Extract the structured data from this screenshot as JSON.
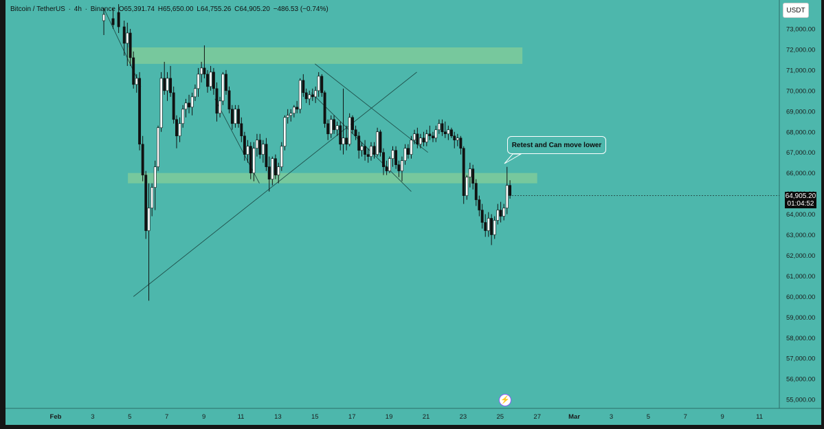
{
  "legend": {
    "symbol": "Bitcoin / TetherUS",
    "interval": "4h",
    "exchange": "Binance",
    "open": "O65,391.74",
    "high": "H65,650.00",
    "low": "L64,755.26",
    "close": "C64,905.20",
    "change": "−486.53 (−0.74%)"
  },
  "currency_button": "USDT",
  "annotation": "Retest and Can move lower",
  "last_price": {
    "value": "64,905.20",
    "countdown": "01:04:52"
  },
  "icons": {
    "bolt": "lightning-bolt-icon"
  },
  "colors": {
    "background": "#4db7ac",
    "zone": "#7fcb9a",
    "candle_up": "#ffffff",
    "candle_down": "#111111"
  },
  "chart_data": {
    "type": "candlestick",
    "y_axis": {
      "min": 55000,
      "max": 73000,
      "tick_labels": [
        "73,000.00",
        "72,000.00",
        "71,000.00",
        "70,000.00",
        "69,000.00",
        "68,000.00",
        "67,000.00",
        "66,000.00",
        "65,000.00",
        "64,000.00",
        "63,000.00",
        "62,000.00",
        "61,000.00",
        "60,000.00",
        "59,000.00",
        "58,000.00",
        "57,000.00",
        "56,000.00",
        "55,000.00"
      ],
      "tick_values": [
        73000,
        72000,
        71000,
        70000,
        69000,
        68000,
        67000,
        66000,
        65000,
        64000,
        63000,
        62000,
        61000,
        60000,
        59000,
        58000,
        57000,
        56000,
        55000
      ]
    },
    "x_axis": {
      "tick_labels": [
        "Feb",
        "3",
        "5",
        "7",
        "9",
        "11",
        "13",
        "15",
        "17",
        "19",
        "21",
        "23",
        "25",
        "27",
        "Mar",
        "3",
        "5",
        "7",
        "9",
        "11"
      ],
      "tick_days": [
        1,
        3,
        5,
        7,
        9,
        11,
        13,
        15,
        17,
        19,
        21,
        23,
        25,
        27,
        29,
        31,
        33,
        35,
        37,
        39
      ]
    },
    "zones": [
      {
        "day_start": 4.9,
        "day_end": 26.2,
        "low": 71300,
        "high": 72100
      },
      {
        "day_start": 4.9,
        "day_end": 27.0,
        "low": 65500,
        "high": 66000
      }
    ],
    "trendlines": [
      {
        "from": [
          5.2,
          60000
        ],
        "to": [
          20.5,
          70900
        ]
      },
      {
        "from": [
          3.6,
          74000
        ],
        "to": [
          5.6,
          70200
        ]
      },
      {
        "from": [
          9.6,
          69600
        ],
        "to": [
          12.0,
          65500
        ]
      },
      {
        "from": [
          14.8,
          69900
        ],
        "to": [
          20.2,
          65100
        ]
      },
      {
        "from": [
          15.0,
          71300
        ],
        "to": [
          21.1,
          67000
        ]
      }
    ],
    "candles": [
      {
        "d": 3.6,
        "o": 73400,
        "h": 74000,
        "l": 72700,
        "c": 73700
      },
      {
        "d": 4.1,
        "o": 73500,
        "h": 74000,
        "l": 73000,
        "c": 73200
      },
      {
        "d": 4.4,
        "o": 73800,
        "h": 74200,
        "l": 72800,
        "c": 73100
      },
      {
        "d": 4.7,
        "o": 73100,
        "h": 73400,
        "l": 71700,
        "c": 72300
      },
      {
        "d": 4.87,
        "o": 72300,
        "h": 73300,
        "l": 71200,
        "c": 72800
      },
      {
        "d": 5.03,
        "o": 72800,
        "h": 73000,
        "l": 71200,
        "c": 71600
      },
      {
        "d": 5.2,
        "o": 71600,
        "h": 71900,
        "l": 70100,
        "c": 70300
      },
      {
        "d": 5.37,
        "o": 70300,
        "h": 70800,
        "l": 69900,
        "c": 70600
      },
      {
        "d": 5.53,
        "o": 70600,
        "h": 70900,
        "l": 67100,
        "c": 67400
      },
      {
        "d": 5.7,
        "o": 67400,
        "h": 67800,
        "l": 65600,
        "c": 65900
      },
      {
        "d": 5.87,
        "o": 65900,
        "h": 66100,
        "l": 62800,
        "c": 63200
      },
      {
        "d": 6.03,
        "o": 63200,
        "h": 65500,
        "l": 59800,
        "c": 64300
      },
      {
        "d": 6.2,
        "o": 64300,
        "h": 65500,
        "l": 63900,
        "c": 65300
      },
      {
        "d": 6.37,
        "o": 65300,
        "h": 66600,
        "l": 64200,
        "c": 66300
      },
      {
        "d": 6.53,
        "o": 66300,
        "h": 68300,
        "l": 66100,
        "c": 68200
      },
      {
        "d": 6.7,
        "o": 68200,
        "h": 70900,
        "l": 68000,
        "c": 70600
      },
      {
        "d": 6.87,
        "o": 70600,
        "h": 71400,
        "l": 69800,
        "c": 70000
      },
      {
        "d": 7.03,
        "o": 70000,
        "h": 70900,
        "l": 69500,
        "c": 70600
      },
      {
        "d": 7.2,
        "o": 70600,
        "h": 71200,
        "l": 69700,
        "c": 69900
      },
      {
        "d": 7.37,
        "o": 69900,
        "h": 70200,
        "l": 68400,
        "c": 68600
      },
      {
        "d": 7.53,
        "o": 68600,
        "h": 68800,
        "l": 67200,
        "c": 67800
      },
      {
        "d": 7.7,
        "o": 67800,
        "h": 68700,
        "l": 67500,
        "c": 68400
      },
      {
        "d": 7.87,
        "o": 68400,
        "h": 69300,
        "l": 68200,
        "c": 69100
      },
      {
        "d": 8.03,
        "o": 69100,
        "h": 69600,
        "l": 68700,
        "c": 69400
      },
      {
        "d": 8.2,
        "o": 69400,
        "h": 69800,
        "l": 68900,
        "c": 69200
      },
      {
        "d": 8.37,
        "o": 69200,
        "h": 69900,
        "l": 68800,
        "c": 69700
      },
      {
        "d": 8.53,
        "o": 69700,
        "h": 70300,
        "l": 69500,
        "c": 70100
      },
      {
        "d": 8.7,
        "o": 70100,
        "h": 71100,
        "l": 69700,
        "c": 70800
      },
      {
        "d": 8.87,
        "o": 70800,
        "h": 71400,
        "l": 70400,
        "c": 71100
      },
      {
        "d": 9.03,
        "o": 71100,
        "h": 72200,
        "l": 70600,
        "c": 70800
      },
      {
        "d": 9.2,
        "o": 70800,
        "h": 71000,
        "l": 69900,
        "c": 70200
      },
      {
        "d": 9.37,
        "o": 70200,
        "h": 71200,
        "l": 70000,
        "c": 70900
      },
      {
        "d": 9.53,
        "o": 70900,
        "h": 71100,
        "l": 69800,
        "c": 70100
      },
      {
        "d": 9.7,
        "o": 70100,
        "h": 70400,
        "l": 68500,
        "c": 68900
      },
      {
        "d": 9.87,
        "o": 68900,
        "h": 69700,
        "l": 68700,
        "c": 69500
      },
      {
        "d": 10.03,
        "o": 69500,
        "h": 70900,
        "l": 69300,
        "c": 70800
      },
      {
        "d": 10.2,
        "o": 70800,
        "h": 71000,
        "l": 69800,
        "c": 70000
      },
      {
        "d": 10.37,
        "o": 70000,
        "h": 70200,
        "l": 68900,
        "c": 69100
      },
      {
        "d": 10.53,
        "o": 69100,
        "h": 69300,
        "l": 68100,
        "c": 68400
      },
      {
        "d": 10.7,
        "o": 68400,
        "h": 69300,
        "l": 68200,
        "c": 69100
      },
      {
        "d": 10.87,
        "o": 69100,
        "h": 69300,
        "l": 68200,
        "c": 68400
      },
      {
        "d": 11.03,
        "o": 68400,
        "h": 68700,
        "l": 67500,
        "c": 67800
      },
      {
        "d": 11.2,
        "o": 67800,
        "h": 68000,
        "l": 66600,
        "c": 66900
      },
      {
        "d": 11.37,
        "o": 66900,
        "h": 67600,
        "l": 66500,
        "c": 67300
      },
      {
        "d": 11.53,
        "o": 67300,
        "h": 67500,
        "l": 65700,
        "c": 66000
      },
      {
        "d": 11.7,
        "o": 66000,
        "h": 67500,
        "l": 65600,
        "c": 67200
      },
      {
        "d": 11.87,
        "o": 67200,
        "h": 67900,
        "l": 66800,
        "c": 67600
      },
      {
        "d": 12.03,
        "o": 67600,
        "h": 67900,
        "l": 66700,
        "c": 66900
      },
      {
        "d": 12.2,
        "o": 66900,
        "h": 67600,
        "l": 66500,
        "c": 67400
      },
      {
        "d": 12.37,
        "o": 67400,
        "h": 67700,
        "l": 66100,
        "c": 66300
      },
      {
        "d": 12.53,
        "o": 66300,
        "h": 66800,
        "l": 65100,
        "c": 65700
      },
      {
        "d": 12.7,
        "o": 65700,
        "h": 66800,
        "l": 65400,
        "c": 66700
      },
      {
        "d": 12.87,
        "o": 66700,
        "h": 66900,
        "l": 65700,
        "c": 65900
      },
      {
        "d": 13.03,
        "o": 65900,
        "h": 66500,
        "l": 65500,
        "c": 66300
      },
      {
        "d": 13.2,
        "o": 66300,
        "h": 67500,
        "l": 66100,
        "c": 67300
      },
      {
        "d": 13.37,
        "o": 67300,
        "h": 68800,
        "l": 67100,
        "c": 68700
      },
      {
        "d": 13.53,
        "o": 68700,
        "h": 69100,
        "l": 68400,
        "c": 68800
      },
      {
        "d": 13.7,
        "o": 68800,
        "h": 69100,
        "l": 68500,
        "c": 68900
      },
      {
        "d": 13.87,
        "o": 68900,
        "h": 69300,
        "l": 68700,
        "c": 69200
      },
      {
        "d": 14.03,
        "o": 69200,
        "h": 69500,
        "l": 68900,
        "c": 69100
      },
      {
        "d": 14.2,
        "o": 69100,
        "h": 70600,
        "l": 68900,
        "c": 70500
      },
      {
        "d": 14.37,
        "o": 70500,
        "h": 70800,
        "l": 69700,
        "c": 69900
      },
      {
        "d": 14.53,
        "o": 69900,
        "h": 70100,
        "l": 69400,
        "c": 69600
      },
      {
        "d": 14.7,
        "o": 69600,
        "h": 70000,
        "l": 69300,
        "c": 69800
      },
      {
        "d": 14.87,
        "o": 69800,
        "h": 70100,
        "l": 69500,
        "c": 69700
      },
      {
        "d": 15.03,
        "o": 69700,
        "h": 70200,
        "l": 69400,
        "c": 70000
      },
      {
        "d": 15.2,
        "o": 70000,
        "h": 70900,
        "l": 69700,
        "c": 70700
      },
      {
        "d": 15.37,
        "o": 70700,
        "h": 70800,
        "l": 69700,
        "c": 69900
      },
      {
        "d": 15.53,
        "o": 69900,
        "h": 70000,
        "l": 68200,
        "c": 68400
      },
      {
        "d": 15.7,
        "o": 68400,
        "h": 68600,
        "l": 67600,
        "c": 67900
      },
      {
        "d": 15.87,
        "o": 67900,
        "h": 68800,
        "l": 67700,
        "c": 68600
      },
      {
        "d": 16.03,
        "o": 68600,
        "h": 68800,
        "l": 67900,
        "c": 68100
      },
      {
        "d": 16.2,
        "o": 68100,
        "h": 68500,
        "l": 67800,
        "c": 68300
      },
      {
        "d": 16.37,
        "o": 68300,
        "h": 68500,
        "l": 67100,
        "c": 67400
      },
      {
        "d": 16.53,
        "o": 67400,
        "h": 70100,
        "l": 66900,
        "c": 67700
      },
      {
        "d": 16.7,
        "o": 67700,
        "h": 68300,
        "l": 67100,
        "c": 67400
      },
      {
        "d": 16.87,
        "o": 67400,
        "h": 68900,
        "l": 67300,
        "c": 68700
      },
      {
        "d": 17.03,
        "o": 68700,
        "h": 68800,
        "l": 67900,
        "c": 68100
      },
      {
        "d": 17.2,
        "o": 68100,
        "h": 68300,
        "l": 67600,
        "c": 67800
      },
      {
        "d": 17.37,
        "o": 67800,
        "h": 68000,
        "l": 66700,
        "c": 67100
      },
      {
        "d": 17.53,
        "o": 67100,
        "h": 67500,
        "l": 66800,
        "c": 67300
      },
      {
        "d": 17.7,
        "o": 67300,
        "h": 67600,
        "l": 66600,
        "c": 66900
      },
      {
        "d": 17.87,
        "o": 66900,
        "h": 67200,
        "l": 66500,
        "c": 66800
      },
      {
        "d": 18.03,
        "o": 66800,
        "h": 67500,
        "l": 66600,
        "c": 67300
      },
      {
        "d": 18.2,
        "o": 67300,
        "h": 67500,
        "l": 66700,
        "c": 66900
      },
      {
        "d": 18.37,
        "o": 66900,
        "h": 68200,
        "l": 66800,
        "c": 68000
      },
      {
        "d": 18.53,
        "o": 68000,
        "h": 68100,
        "l": 66800,
        "c": 67000
      },
      {
        "d": 18.7,
        "o": 67000,
        "h": 67200,
        "l": 65900,
        "c": 66300
      },
      {
        "d": 18.87,
        "o": 66300,
        "h": 66600,
        "l": 65900,
        "c": 66100
      },
      {
        "d": 19.03,
        "o": 66100,
        "h": 66800,
        "l": 66000,
        "c": 66700
      },
      {
        "d": 19.2,
        "o": 66700,
        "h": 67300,
        "l": 66300,
        "c": 67100
      },
      {
        "d": 19.37,
        "o": 67100,
        "h": 67300,
        "l": 66200,
        "c": 66400
      },
      {
        "d": 19.53,
        "o": 66400,
        "h": 66600,
        "l": 65800,
        "c": 66100
      },
      {
        "d": 19.7,
        "o": 66100,
        "h": 66800,
        "l": 65600,
        "c": 66600
      },
      {
        "d": 19.87,
        "o": 66600,
        "h": 67400,
        "l": 66400,
        "c": 67200
      },
      {
        "d": 20.03,
        "o": 67200,
        "h": 67400,
        "l": 66700,
        "c": 66900
      },
      {
        "d": 20.2,
        "o": 66900,
        "h": 67800,
        "l": 66700,
        "c": 67600
      },
      {
        "d": 20.37,
        "o": 67600,
        "h": 68100,
        "l": 67400,
        "c": 67900
      },
      {
        "d": 20.53,
        "o": 67900,
        "h": 68200,
        "l": 67200,
        "c": 67400
      },
      {
        "d": 20.7,
        "o": 67400,
        "h": 67900,
        "l": 67200,
        "c": 67700
      },
      {
        "d": 20.87,
        "o": 67700,
        "h": 68000,
        "l": 67300,
        "c": 67500
      },
      {
        "d": 21.03,
        "o": 67500,
        "h": 68100,
        "l": 67300,
        "c": 67900
      },
      {
        "d": 21.2,
        "o": 67900,
        "h": 68300,
        "l": 67600,
        "c": 67800
      },
      {
        "d": 21.37,
        "o": 67800,
        "h": 68000,
        "l": 67500,
        "c": 67700
      },
      {
        "d": 21.53,
        "o": 67700,
        "h": 68300,
        "l": 67500,
        "c": 68100
      },
      {
        "d": 21.7,
        "o": 68100,
        "h": 68600,
        "l": 67900,
        "c": 68400
      },
      {
        "d": 21.87,
        "o": 68400,
        "h": 68600,
        "l": 67800,
        "c": 68000
      },
      {
        "d": 22.03,
        "o": 68000,
        "h": 68500,
        "l": 67700,
        "c": 67900
      },
      {
        "d": 22.2,
        "o": 67900,
        "h": 68300,
        "l": 67600,
        "c": 68100
      },
      {
        "d": 22.37,
        "o": 68100,
        "h": 68200,
        "l": 67700,
        "c": 67800
      },
      {
        "d": 22.53,
        "o": 67800,
        "h": 68000,
        "l": 67200,
        "c": 67600
      },
      {
        "d": 22.7,
        "o": 67600,
        "h": 67900,
        "l": 67300,
        "c": 67700
      },
      {
        "d": 22.87,
        "o": 67700,
        "h": 67800,
        "l": 66900,
        "c": 67200
      },
      {
        "d": 23.03,
        "o": 67200,
        "h": 67300,
        "l": 64500,
        "c": 64900
      },
      {
        "d": 23.2,
        "o": 64900,
        "h": 65900,
        "l": 64700,
        "c": 65800
      },
      {
        "d": 23.37,
        "o": 65800,
        "h": 66500,
        "l": 65300,
        "c": 66200
      },
      {
        "d": 23.53,
        "o": 66200,
        "h": 66400,
        "l": 65200,
        "c": 65500
      },
      {
        "d": 23.7,
        "o": 65500,
        "h": 65700,
        "l": 64400,
        "c": 64700
      },
      {
        "d": 23.87,
        "o": 64700,
        "h": 64900,
        "l": 63900,
        "c": 64200
      },
      {
        "d": 24.03,
        "o": 64200,
        "h": 64500,
        "l": 63300,
        "c": 63600
      },
      {
        "d": 24.2,
        "o": 63600,
        "h": 64000,
        "l": 62900,
        "c": 63200
      },
      {
        "d": 24.37,
        "o": 63200,
        "h": 64100,
        "l": 62900,
        "c": 63800
      },
      {
        "d": 24.53,
        "o": 63800,
        "h": 64000,
        "l": 62500,
        "c": 63000
      },
      {
        "d": 24.7,
        "o": 63000,
        "h": 63900,
        "l": 62800,
        "c": 63700
      },
      {
        "d": 24.87,
        "o": 63700,
        "h": 64500,
        "l": 63500,
        "c": 64200
      },
      {
        "d": 25.03,
        "o": 64200,
        "h": 64600,
        "l": 63600,
        "c": 63900
      },
      {
        "d": 25.2,
        "o": 63900,
        "h": 64500,
        "l": 63700,
        "c": 64300
      },
      {
        "d": 25.37,
        "o": 64300,
        "h": 66300,
        "l": 64000,
        "c": 65400
      },
      {
        "d": 25.53,
        "o": 65400,
        "h": 65650,
        "l": 64755,
        "c": 64905
      }
    ]
  }
}
